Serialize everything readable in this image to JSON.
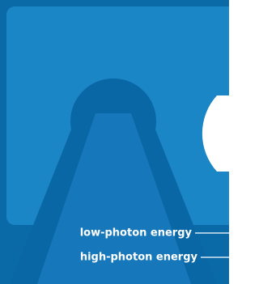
{
  "labels": {
    "low": "low-photon energy",
    "high": "high-photon energy"
  }
}
